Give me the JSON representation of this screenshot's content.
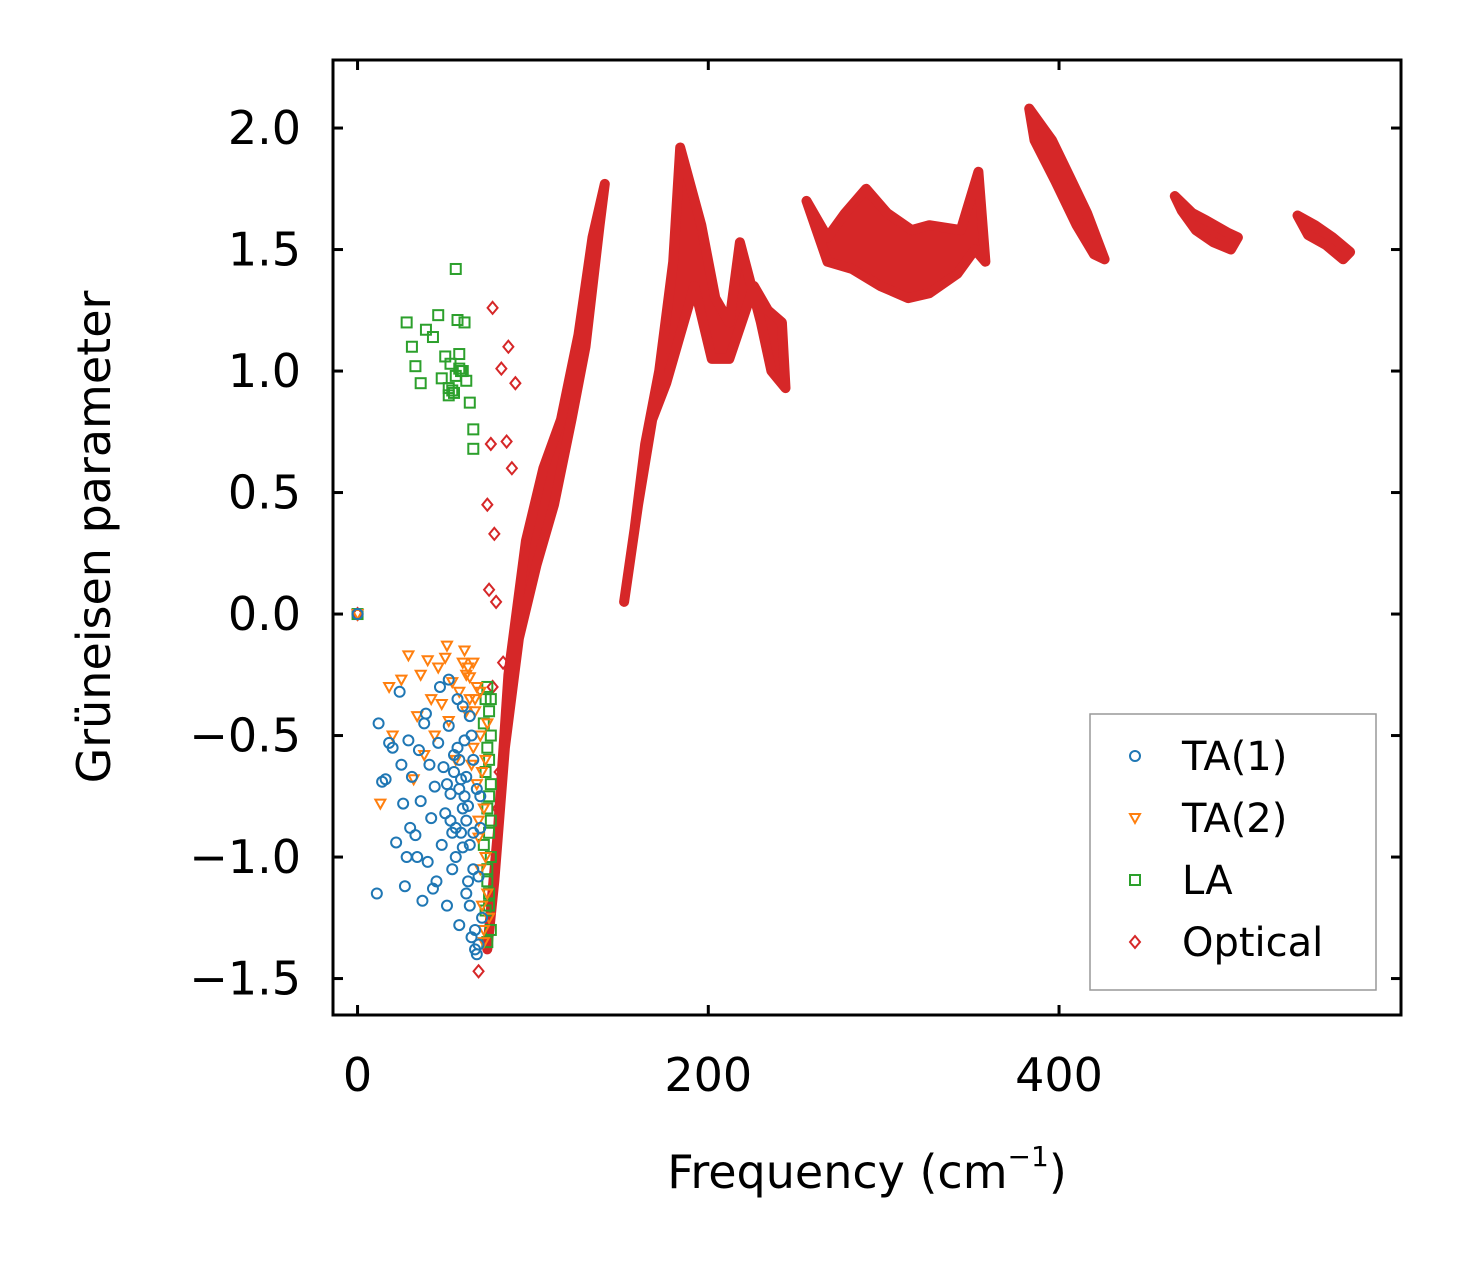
{
  "chart_data": {
    "type": "scatter",
    "xlabel": "Frequency (cm",
    "xlabel_sup": "−1",
    "xlabel_suffix": ")",
    "ylabel": "Grüneisen parameter",
    "xlim": [
      -14,
      595
    ],
    "ylim": [
      -1.65,
      2.28
    ],
    "xticks": [
      0,
      200,
      400
    ],
    "xtick_labels": [
      "0",
      "200",
      "400"
    ],
    "yticks": [
      -1.5,
      -1.0,
      -0.5,
      0.0,
      0.5,
      1.0,
      1.5,
      2.0
    ],
    "ytick_labels": [
      "−1.5",
      "−1.0",
      "−0.5",
      "0.0",
      "0.5",
      "1.0",
      "1.5",
      "2.0"
    ],
    "grid": false,
    "legend_position": "lower-right",
    "series": [
      {
        "name": "TA(1)",
        "color": "#1f77b4",
        "marker": "circle",
        "points": [
          [
            0,
            0
          ],
          [
            12,
            -0.45
          ],
          [
            14,
            -0.69
          ],
          [
            16,
            -0.68
          ],
          [
            18,
            -0.53
          ],
          [
            20,
            -0.55
          ],
          [
            22,
            -0.94
          ],
          [
            24,
            -0.32
          ],
          [
            25,
            -0.62
          ],
          [
            26,
            -0.78
          ],
          [
            28,
            -1.0
          ],
          [
            29,
            -0.52
          ],
          [
            30,
            -0.88
          ],
          [
            31,
            -0.67
          ],
          [
            33,
            -0.91
          ],
          [
            34,
            -1.0
          ],
          [
            35,
            -0.56
          ],
          [
            36,
            -0.77
          ],
          [
            38,
            -0.45
          ],
          [
            40,
            -1.02
          ],
          [
            41,
            -0.62
          ],
          [
            42,
            -0.84
          ],
          [
            44,
            -0.71
          ],
          [
            45,
            -1.1
          ],
          [
            46,
            -0.53
          ],
          [
            47,
            -0.3
          ],
          [
            48,
            -0.95
          ],
          [
            49,
            -0.63
          ],
          [
            50,
            -0.82
          ],
          [
            51,
            -1.2
          ],
          [
            52,
            -0.46
          ],
          [
            53,
            -0.74
          ],
          [
            54,
            -1.05
          ],
          [
            55,
            -0.58
          ],
          [
            56,
            -0.88
          ],
          [
            57,
            -0.35
          ],
          [
            58,
            -1.28
          ],
          [
            59,
            -0.68
          ],
          [
            60,
            -0.96
          ],
          [
            61,
            -0.52
          ],
          [
            62,
            -1.15
          ],
          [
            63,
            -0.79
          ],
          [
            64,
            -0.42
          ],
          [
            65,
            -1.33
          ],
          [
            66,
            -0.9
          ],
          [
            67,
            -1.38
          ],
          [
            68,
            -1.4
          ],
          [
            69,
            -1.08
          ],
          [
            70,
            -0.75
          ],
          [
            71,
            -1.25
          ],
          [
            11,
            -1.15
          ],
          [
            27,
            -1.12
          ],
          [
            43,
            -1.13
          ],
          [
            37,
            -1.18
          ],
          [
            39,
            -0.41
          ],
          [
            52,
            -0.27
          ],
          [
            60,
            -0.38
          ],
          [
            66,
            -0.6
          ],
          [
            64,
            -1.2
          ],
          [
            62,
            -0.85
          ],
          [
            58,
            -0.72
          ],
          [
            54,
            -0.9
          ],
          [
            56,
            -1.0
          ],
          [
            58,
            -0.6
          ],
          [
            60,
            -0.8
          ],
          [
            62,
            -0.67
          ],
          [
            64,
            -0.95
          ],
          [
            66,
            -1.05
          ],
          [
            68,
            -0.72
          ],
          [
            70,
            -0.88
          ],
          [
            67,
            -1.3
          ],
          [
            69,
            -1.36
          ],
          [
            65,
            -0.5
          ],
          [
            63,
            -1.1
          ],
          [
            61,
            -0.75
          ],
          [
            59,
            -0.9
          ],
          [
            57,
            -0.55
          ],
          [
            55,
            -0.65
          ],
          [
            53,
            -0.85
          ],
          [
            51,
            -0.7
          ]
        ]
      },
      {
        "name": "TA(2)",
        "color": "#ff7f0e",
        "marker": "triangle-down",
        "points": [
          [
            0,
            0
          ],
          [
            13,
            -0.78
          ],
          [
            18,
            -0.3
          ],
          [
            20,
            -0.5
          ],
          [
            25,
            -0.27
          ],
          [
            29,
            -0.17
          ],
          [
            32,
            -0.68
          ],
          [
            34,
            -0.42
          ],
          [
            36,
            -0.25
          ],
          [
            38,
            -0.58
          ],
          [
            40,
            -0.19
          ],
          [
            42,
            -0.35
          ],
          [
            44,
            -0.5
          ],
          [
            46,
            -0.22
          ],
          [
            48,
            -0.37
          ],
          [
            50,
            -0.18
          ],
          [
            51,
            -0.13
          ],
          [
            52,
            -0.44
          ],
          [
            54,
            -0.28
          ],
          [
            56,
            -0.6
          ],
          [
            58,
            -0.32
          ],
          [
            60,
            -0.2
          ],
          [
            61,
            -0.15
          ],
          [
            62,
            -0.4
          ],
          [
            64,
            -0.26
          ],
          [
            66,
            -0.55
          ],
          [
            67,
            -0.35
          ],
          [
            68,
            -0.7
          ],
          [
            69,
            -0.92
          ],
          [
            70,
            -1.05
          ],
          [
            71,
            -1.2
          ],
          [
            72,
            -1.3
          ],
          [
            72,
            -0.8
          ],
          [
            73,
            -1.0
          ],
          [
            73,
            -0.6
          ],
          [
            74,
            -1.15
          ],
          [
            74,
            -0.45
          ],
          [
            75,
            -1.25
          ],
          [
            70,
            -0.5
          ],
          [
            68,
            -0.3
          ],
          [
            71,
            -0.65
          ],
          [
            69,
            -0.85
          ],
          [
            72,
            -1.35
          ],
          [
            66,
            -0.2
          ],
          [
            64,
            -0.35
          ],
          [
            63,
            -0.22
          ],
          [
            67,
            -0.4
          ],
          [
            65,
            -0.62
          ],
          [
            62,
            -0.25
          ],
          [
            70,
            -0.32
          ]
        ]
      },
      {
        "name": "LA",
        "color": "#2ca02c",
        "marker": "square",
        "points": [
          [
            0,
            0
          ],
          [
            28,
            1.2
          ],
          [
            31,
            1.1
          ],
          [
            33,
            1.02
          ],
          [
            36,
            0.95
          ],
          [
            39,
            1.17
          ],
          [
            43,
            1.14
          ],
          [
            46,
            1.23
          ],
          [
            48,
            0.97
          ],
          [
            50,
            1.06
          ],
          [
            52,
            0.93
          ],
          [
            53,
            1.03
          ],
          [
            55,
            0.91
          ],
          [
            56,
            0.98
          ],
          [
            57,
            1.21
          ],
          [
            58,
            1.01
          ],
          [
            59,
            1.0
          ],
          [
            61,
            1.2
          ],
          [
            62,
            0.96
          ],
          [
            64,
            0.87
          ],
          [
            66,
            0.76
          ],
          [
            66,
            0.68
          ],
          [
            56,
            1.42
          ],
          [
            52,
            0.9
          ],
          [
            54,
            0.92
          ],
          [
            58,
            1.07
          ],
          [
            60,
            1.0
          ],
          [
            74,
            -0.3
          ],
          [
            75,
            -0.4
          ],
          [
            76,
            -0.5
          ],
          [
            75,
            -0.6
          ],
          [
            76,
            -0.7
          ],
          [
            74,
            -0.8
          ],
          [
            75,
            -0.9
          ],
          [
            76,
            -1.0
          ],
          [
            74,
            -1.1
          ],
          [
            75,
            -1.2
          ],
          [
            76,
            -1.3
          ],
          [
            74,
            -1.35
          ],
          [
            72,
            -0.95
          ],
          [
            73,
            -0.65
          ],
          [
            72,
            -0.45
          ],
          [
            73,
            -1.22
          ],
          [
            76,
            -0.35
          ],
          [
            74,
            -0.55
          ],
          [
            75,
            -0.75
          ],
          [
            76,
            -0.85
          ],
          [
            74,
            -1.05
          ],
          [
            75,
            -1.15
          ],
          [
            73,
            -0.35
          ]
        ]
      },
      {
        "name": "Optical",
        "color": "#d62728",
        "marker": "diamond",
        "points": [
          [
            0,
            0
          ],
          [
            69,
            -1.47
          ],
          [
            77,
            1.26
          ],
          [
            80,
            -0.8
          ],
          [
            82,
            1.01
          ],
          [
            85,
            0.71
          ],
          [
            86,
            1.1
          ],
          [
            88,
            0.6
          ],
          [
            90,
            0.95
          ],
          [
            76,
            0.7
          ],
          [
            74,
            0.45
          ],
          [
            78,
            0.33
          ],
          [
            75,
            0.1
          ],
          [
            77,
            -0.3
          ],
          [
            79,
            0.05
          ],
          [
            81,
            -0.65
          ],
          [
            83,
            -0.2
          ]
        ],
        "bands": [
          [
            [
              74,
              -1.38
            ],
            [
              80,
              -0.9
            ],
            [
              86,
              -0.25
            ],
            [
              96,
              0.3
            ],
            [
              106,
              0.6
            ],
            [
              116,
              0.8
            ],
            [
              126,
              1.15
            ],
            [
              134,
              1.55
            ],
            [
              141,
              1.77
            ],
            [
              138,
              1.6
            ],
            [
              130,
              1.1
            ],
            [
              122,
              0.8
            ],
            [
              112,
              0.45
            ],
            [
              102,
              0.2
            ],
            [
              92,
              -0.1
            ],
            [
              84,
              -0.55
            ],
            [
              78,
              -1.1
            ]
          ],
          [
            [
              152,
              0.05
            ],
            [
              158,
              0.35
            ],
            [
              164,
              0.7
            ],
            [
              172,
              1.0
            ],
            [
              180,
              1.45
            ],
            [
              184,
              1.92
            ],
            [
              196,
              1.6
            ],
            [
              204,
              1.3
            ],
            [
              212,
              1.2
            ],
            [
              218,
              1.53
            ],
            [
              230,
              1.2
            ],
            [
              236,
              1.0
            ],
            [
              244,
              0.93
            ],
            [
              242,
              1.2
            ],
            [
              234,
              1.25
            ],
            [
              226,
              1.35
            ],
            [
              212,
              1.05
            ],
            [
              202,
              1.05
            ],
            [
              192,
              1.35
            ],
            [
              184,
              1.15
            ],
            [
              176,
              0.95
            ],
            [
              168,
              0.8
            ],
            [
              160,
              0.45
            ]
          ],
          [
            [
              256,
              1.7
            ],
            [
              268,
              1.55
            ],
            [
              278,
              1.65
            ],
            [
              290,
              1.75
            ],
            [
              302,
              1.65
            ],
            [
              316,
              1.58
            ],
            [
              326,
              1.6
            ],
            [
              344,
              1.58
            ],
            [
              354,
              1.82
            ],
            [
              358,
              1.45
            ],
            [
              352,
              1.5
            ],
            [
              342,
              1.4
            ],
            [
              326,
              1.32
            ],
            [
              314,
              1.3
            ],
            [
              298,
              1.35
            ],
            [
              282,
              1.42
            ],
            [
              268,
              1.45
            ]
          ],
          [
            [
              383,
              2.08
            ],
            [
              396,
              1.95
            ],
            [
              406,
              1.8
            ],
            [
              416,
              1.65
            ],
            [
              426,
              1.46
            ],
            [
              420,
              1.48
            ],
            [
              410,
              1.6
            ],
            [
              398,
              1.78
            ],
            [
              386,
              1.95
            ]
          ],
          [
            [
              466,
              1.72
            ],
            [
              476,
              1.65
            ],
            [
              484,
              1.62
            ],
            [
              496,
              1.57
            ],
            [
              502,
              1.55
            ],
            [
              498,
              1.5
            ],
            [
              488,
              1.53
            ],
            [
              478,
              1.58
            ],
            [
              470,
              1.66
            ]
          ],
          [
            [
              536,
              1.64
            ],
            [
              546,
              1.6
            ],
            [
              556,
              1.55
            ],
            [
              566,
              1.49
            ],
            [
              562,
              1.46
            ],
            [
              552,
              1.52
            ],
            [
              542,
              1.56
            ]
          ]
        ]
      }
    ]
  }
}
